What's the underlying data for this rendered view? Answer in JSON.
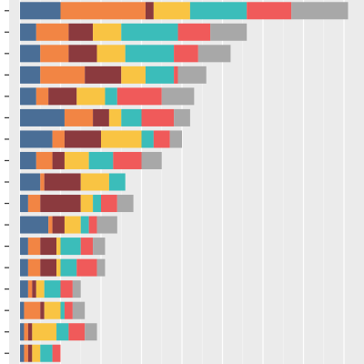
{
  "chart_data": {
    "type": "bar",
    "orientation": "horizontal",
    "stacked": true,
    "title": "",
    "xlabel": "",
    "ylabel": "",
    "grid": true,
    "legend": "none",
    "xlim": [
      0,
      8.4
    ],
    "x_gridlines": [
      0,
      1,
      2,
      3,
      4,
      5,
      6,
      7,
      8
    ],
    "categories": [
      "",
      "",
      "",
      "",
      "",
      "",
      "",
      "",
      "",
      "",
      "",
      "",
      "",
      "",
      "",
      "",
      ""
    ],
    "series": [
      {
        "color": "#4A6E96",
        "values": [
          1.0,
          0.4,
          0.5,
          0.5,
          0.4,
          1.1,
          0.8,
          0.4,
          0.5,
          0.2,
          0.7,
          0.2,
          0.2,
          0.2,
          0.1,
          0.1,
          0.1
        ]
      },
      {
        "color": "#F28544",
        "values": [
          2.1,
          0.8,
          0.7,
          1.1,
          0.3,
          0.7,
          0.3,
          0.4,
          0.1,
          0.3,
          0.1,
          0.3,
          0.3,
          0.1,
          0.4,
          0.1,
          0.1
        ]
      },
      {
        "color": "#8B3A3E",
        "values": [
          0.2,
          0.6,
          0.7,
          0.9,
          0.7,
          0.4,
          0.9,
          0.3,
          0.9,
          1.0,
          0.3,
          0.4,
          0.4,
          0.1,
          0.1,
          0.1,
          0.1
        ]
      },
      {
        "color": "#F9C443",
        "values": [
          0.9,
          0.7,
          0.7,
          0.6,
          0.7,
          0.3,
          1.0,
          0.6,
          0.7,
          0.3,
          0.4,
          0.1,
          0.1,
          0.2,
          0.4,
          0.6,
          0.2
        ]
      },
      {
        "color": "#3BBDBA",
        "values": [
          1.4,
          1.4,
          1.2,
          0.7,
          0.3,
          0.5,
          0.3,
          0.6,
          0.4,
          0.2,
          0.2,
          0.5,
          0.4,
          0.4,
          0.1,
          0.3,
          0.3
        ]
      },
      {
        "color": "#F05A5A",
        "values": [
          1.1,
          0.8,
          0.6,
          0.1,
          1.1,
          0.8,
          0.4,
          0.7,
          0.0,
          0.4,
          0.2,
          0.3,
          0.5,
          0.3,
          0.2,
          0.4,
          0.2
        ]
      },
      {
        "color": "#A8A8A8",
        "values": [
          1.4,
          0.9,
          0.8,
          0.7,
          0.8,
          0.4,
          0.3,
          0.5,
          0.0,
          0.4,
          0.5,
          0.3,
          0.2,
          0.2,
          0.3,
          0.3,
          0.0
        ]
      }
    ]
  }
}
